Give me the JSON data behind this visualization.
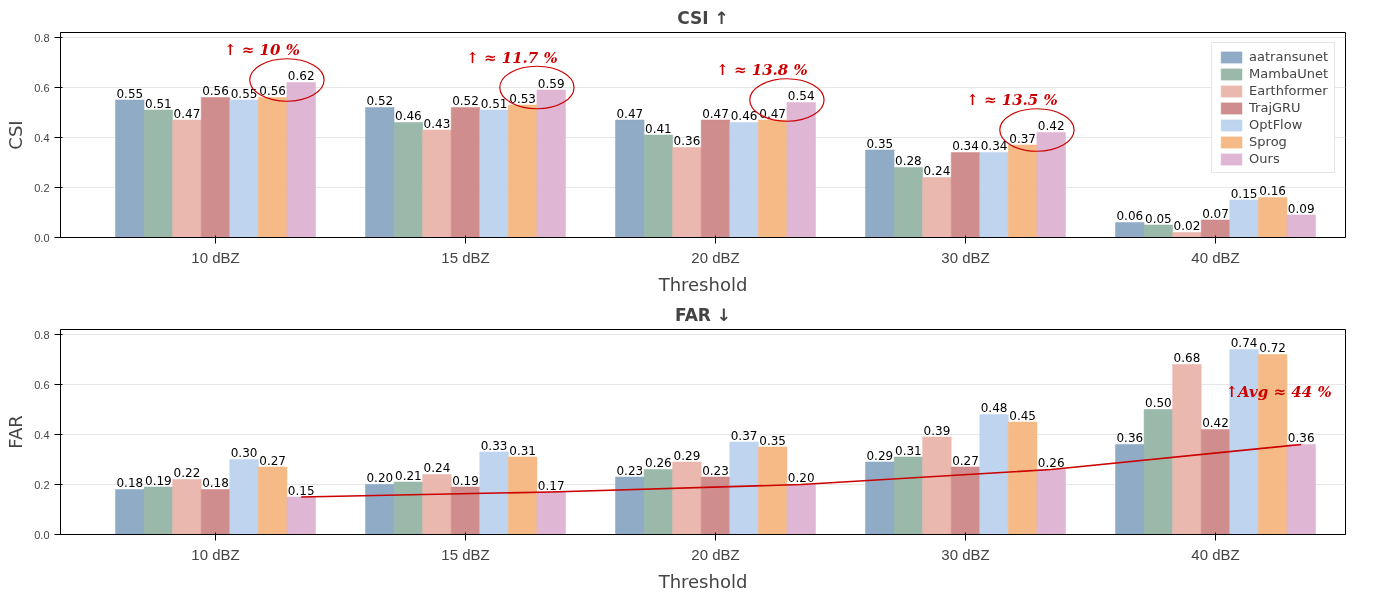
{
  "chart_data": [
    {
      "type": "bar",
      "title": "CSI ↑",
      "xlabel": "Threshold",
      "ylabel": "CSI",
      "categories": [
        "10 dBZ",
        "15 dBZ",
        "20 dBZ",
        "30 dBZ",
        "40 dBZ"
      ],
      "series": [
        {
          "name": "aatransunet",
          "color": "#8aa6c3",
          "values": [
            0.55,
            0.52,
            0.47,
            0.35,
            0.06
          ],
          "value_labels": [
            "0.55",
            "0.52",
            "0.47",
            "0.35",
            "0.06"
          ]
        },
        {
          "name": "MambaUnet",
          "color": "#95b5a6",
          "values": [
            0.51,
            0.46,
            0.41,
            0.28,
            0.05
          ],
          "value_labels": [
            "0.51",
            "0.46",
            "0.41",
            "0.28",
            "0.05"
          ]
        },
        {
          "name": "Earthformer",
          "color": "#e9b4aa",
          "values": [
            0.47,
            0.43,
            0.36,
            0.24,
            0.02
          ],
          "value_labels": [
            "0.47",
            "0.43",
            "0.36",
            "0.24",
            "0.02"
          ]
        },
        {
          "name": "TrajGRU",
          "color": "#cc8787",
          "values": [
            0.56,
            0.52,
            0.47,
            0.34,
            0.07
          ],
          "value_labels": [
            "0.56",
            "0.52",
            "0.47",
            "0.34",
            "0.07"
          ]
        },
        {
          "name": "OptFlow",
          "color": "#bad2ee",
          "values": [
            0.55,
            0.51,
            0.46,
            0.34,
            0.15
          ],
          "value_labels": [
            "0.55",
            "0.51",
            "0.46",
            "0.34",
            "0.15"
          ]
        },
        {
          "name": "Sprog",
          "color": "#f4b67f",
          "values": [
            0.56,
            0.53,
            0.47,
            0.37,
            0.16
          ],
          "value_labels": [
            "0.56",
            "0.53",
            "0.47",
            "0.37",
            "0.16"
          ]
        },
        {
          "name": "Ours",
          "color": "#ddb2d1",
          "values": [
            0.62,
            0.59,
            0.54,
            0.42,
            0.09
          ],
          "value_labels": [
            "0.62",
            "0.59",
            "0.54",
            "0.42",
            "0.09"
          ]
        }
      ],
      "annotations": [
        "↑ ≈ 10 %",
        "↑ ≈ 11.7 %",
        "↑ ≈ 13.8 %",
        "↑ ≈ 13.5 %"
      ],
      "ylim": [
        0,
        0.82
      ],
      "yticks": [
        {
          "value": 0,
          "label": "0.0"
        },
        {
          "value": 0.2,
          "label": "0.2"
        },
        {
          "value": 0.4,
          "label": "0.4"
        },
        {
          "value": 0.6,
          "label": "0.6"
        },
        {
          "value": 0.8,
          "label": "0.8"
        }
      ],
      "grid": "y",
      "legend": "top right"
    },
    {
      "type": "bar",
      "title": "FAR ↓",
      "xlabel": "Threshold",
      "ylabel": "FAR",
      "categories": [
        "10 dBZ",
        "15 dBZ",
        "20 dBZ",
        "30 dBZ",
        "40 dBZ"
      ],
      "series": [
        {
          "color": "#8aa6c3",
          "values": [
            0.18,
            0.2,
            0.23,
            0.29,
            0.36
          ],
          "value_labels": [
            "0.18",
            "0.20",
            "0.23",
            "0.29",
            "0.36"
          ]
        },
        {
          "color": "#95b5a6",
          "values": [
            0.19,
            0.21,
            0.26,
            0.31,
            0.5
          ],
          "value_labels": [
            "0.19",
            "0.21",
            "0.26",
            "0.31",
            "0.50"
          ]
        },
        {
          "color": "#e9b4aa",
          "values": [
            0.22,
            0.24,
            0.29,
            0.39,
            0.68
          ],
          "value_labels": [
            "0.22",
            "0.24",
            "0.29",
            "0.39",
            "0.68"
          ]
        },
        {
          "color": "#cc8787",
          "values": [
            0.18,
            0.19,
            0.23,
            0.27,
            0.42
          ],
          "value_labels": [
            "0.18",
            "0.19",
            "0.23",
            "0.27",
            "0.42"
          ]
        },
        {
          "color": "#bad2ee",
          "values": [
            0.3,
            0.33,
            0.37,
            0.48,
            0.74
          ],
          "value_labels": [
            "0.30",
            "0.33",
            "0.37",
            "0.48",
            "0.74"
          ]
        },
        {
          "color": "#f4b67f",
          "values": [
            0.27,
            0.31,
            0.35,
            0.45,
            0.72
          ],
          "value_labels": [
            "0.27",
            "0.31",
            "0.35",
            "0.45",
            "0.72"
          ]
        },
        {
          "color": "#ddb2d1",
          "values": [
            0.15,
            0.17,
            0.2,
            0.26,
            0.36
          ],
          "value_labels": [
            "0.15",
            "0.17",
            "0.20",
            "0.26",
            "0.36"
          ]
        },
        {
          "type": "line",
          "color": "#cc0000",
          "values": [
            0.15,
            0.17,
            0.2,
            0.26,
            0.36
          ]
        }
      ],
      "annotations": [
        "↑Avg  ≈ 44 %"
      ],
      "ylim": [
        0,
        0.82
      ],
      "yticks": [
        {
          "value": 0,
          "label": "0.0"
        },
        {
          "value": 0.2,
          "label": "0.2"
        },
        {
          "value": 0.4,
          "label": "0.4"
        },
        {
          "value": 0.6,
          "label": "0.6"
        },
        {
          "value": 0.8,
          "label": "0.8"
        }
      ],
      "grid": "y"
    }
  ]
}
